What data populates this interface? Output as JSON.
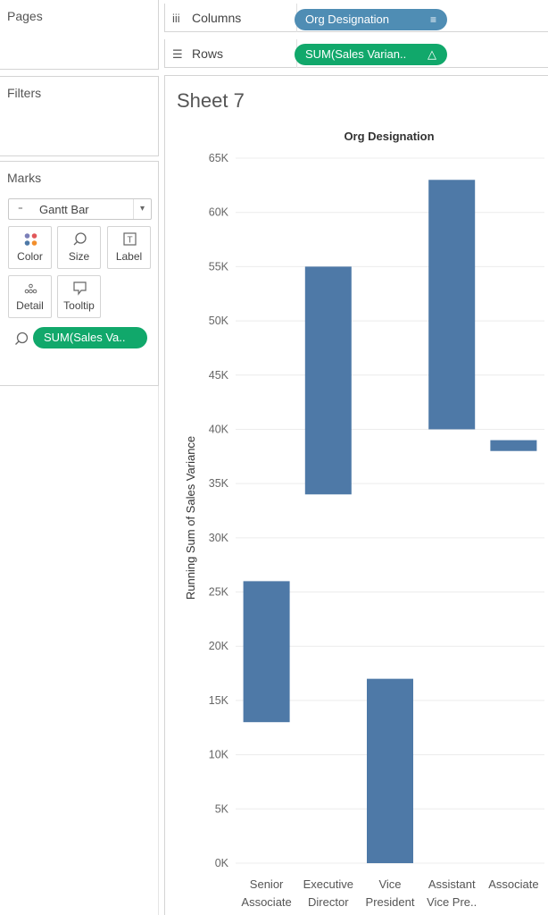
{
  "left_panel": {
    "pages_title": "Pages",
    "filters_title": "Filters",
    "marks_title": "Marks",
    "mark_type": "Gantt Bar",
    "mark_buttons": [
      {
        "label": "Color",
        "icon": "color-dots-icon"
      },
      {
        "label": "Size",
        "icon": "size-icon"
      },
      {
        "label": "Label",
        "icon": "label-icon"
      },
      {
        "label": "Detail",
        "icon": "detail-dots-icon"
      },
      {
        "label": "Tooltip",
        "icon": "tooltip-icon"
      }
    ],
    "size_pill": "SUM(Sales Va.."
  },
  "shelves": {
    "columns_label": "Columns",
    "columns_pill": "Org Designation",
    "rows_label": "Rows",
    "rows_pill": "SUM(Sales Varian.."
  },
  "sheet_title": "Sheet 7",
  "colors": {
    "bar": "#4e79a7",
    "green_pill": "#11a86b",
    "blue_pill": "#4f8db4",
    "grid": "#ececec"
  },
  "chart_data": {
    "type": "gantt-bar",
    "title": "Org Designation",
    "ylabel": "Running Sum of Sales Variance",
    "ylim": [
      0,
      65000
    ],
    "y_ticks": [
      "0K",
      "5K",
      "10K",
      "15K",
      "20K",
      "25K",
      "30K",
      "35K",
      "40K",
      "45K",
      "50K",
      "55K",
      "60K",
      "65K"
    ],
    "categories": [
      [
        "Senior",
        "Associate"
      ],
      [
        "Executive",
        "Director"
      ],
      [
        "Vice",
        "President"
      ],
      [
        "Assistant",
        "Vice Pre.."
      ],
      [
        "Associate"
      ]
    ],
    "bars": [
      {
        "start": 13000,
        "end": 26000
      },
      {
        "start": 34000,
        "end": 55000
      },
      {
        "start": 0,
        "end": 17000
      },
      {
        "start": 40000,
        "end": 63000
      },
      {
        "start": 38000,
        "end": 39000
      }
    ],
    "grid": true
  }
}
